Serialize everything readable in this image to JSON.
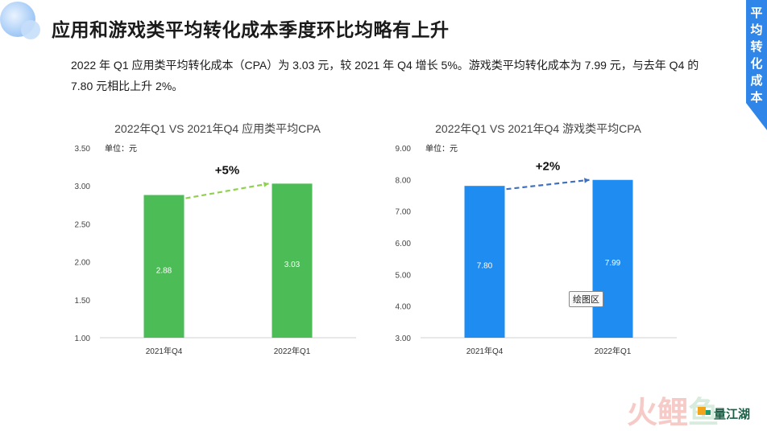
{
  "header": {
    "title": "应用和游戏类平均转化成本季度环比均略有上升",
    "side_tag": "平均转化成本"
  },
  "description": "2022 年 Q1 应用类平均转化成本（CPA）为 3.03 元，较 2021 年 Q4 增长 5%。游戏类平均转化成本为 7.99 元，与去年 Q4 的 7.80 元相比上升 2%。",
  "tooltip": "绘图区",
  "watermark": {
    "text1": "火鲤鱼",
    "text2": "量江湖"
  },
  "colors": {
    "accent": "#2f86e8",
    "green": "#4cbd56",
    "blue": "#1e8cf0",
    "green_arrow": "#8fd14f",
    "blue_arrow": "#3f6fbf"
  },
  "chart_data": [
    {
      "type": "bar",
      "title": "2022年Q1 VS 2021年Q4 应用类平均CPA",
      "unit_label": "单位：元",
      "categories": [
        "2021年Q4",
        "2022年Q1"
      ],
      "values": [
        2.88,
        3.03
      ],
      "value_labels": [
        "2.88",
        "3.03"
      ],
      "ylim": [
        1.0,
        3.5
      ],
      "yticks": [
        "1.00",
        "1.50",
        "2.00",
        "2.50",
        "3.00",
        "3.50"
      ],
      "color": "#4cbd56",
      "annotation": "+5%",
      "grid": false
    },
    {
      "type": "bar",
      "title": "2022年Q1 VS 2021年Q4 游戏类平均CPA",
      "unit_label": "单位：元",
      "categories": [
        "2021年Q4",
        "2022年Q1"
      ],
      "values": [
        7.8,
        7.99
      ],
      "value_labels": [
        "7.80",
        "7.99"
      ],
      "ylim": [
        3.0,
        9.0
      ],
      "yticks": [
        "3.00",
        "4.00",
        "5.00",
        "6.00",
        "7.00",
        "8.00",
        "9.00"
      ],
      "color": "#1e8cf0",
      "annotation": "+2%",
      "grid": false
    }
  ]
}
